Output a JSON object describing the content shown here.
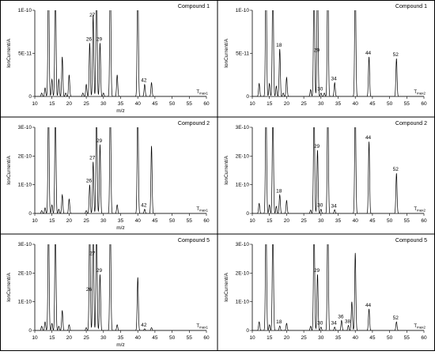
{
  "chart_data": [
    {
      "type": "line",
      "title": "Compound 1",
      "xlabel": "m/z",
      "ylabel": "IonCurrent/A",
      "xlim": [
        10,
        60
      ],
      "ylim": [
        0,
        1e-10
      ],
      "xticks": [
        "10",
        "15",
        "20",
        "25",
        "30",
        "35",
        "40",
        "45",
        "50",
        "55",
        "60"
      ],
      "yticks": [
        {
          "value": 0,
          "label": "0"
        },
        {
          "value": 5e-11,
          "label": "5E-11"
        },
        {
          "value": 1e-10,
          "label": "1E-10"
        }
      ],
      "temp_label": "Tmax1",
      "peaks": [
        {
          "x": 12,
          "y": 4e-12
        },
        {
          "x": 13,
          "y": 1e-11
        },
        {
          "x": 14,
          "y": 1.5e-10
        },
        {
          "x": 15,
          "y": 2e-11
        },
        {
          "x": 16,
          "y": 1.5e-10
        },
        {
          "x": 17,
          "y": 2e-11
        },
        {
          "x": 18,
          "y": 4.6e-11
        },
        {
          "x": 19,
          "y": 4e-12
        },
        {
          "x": 20,
          "y": 2.5e-11
        },
        {
          "x": 24,
          "y": 4e-12
        },
        {
          "x": 25,
          "y": 1.4e-11
        },
        {
          "x": 26,
          "y": 6.2e-11
        },
        {
          "x": 27,
          "y": 9.5e-11
        },
        {
          "x": 28,
          "y": 1.5e-10
        },
        {
          "x": 29,
          "y": 6.2e-11
        },
        {
          "x": 30,
          "y": 4e-12
        },
        {
          "x": 32,
          "y": 1.5e-10
        },
        {
          "x": 34,
          "y": 2.5e-11
        },
        {
          "x": 40,
          "y": 1.5e-10
        },
        {
          "x": 42,
          "y": 1.4e-11
        },
        {
          "x": 44,
          "y": 1.6e-11
        }
      ],
      "labels": [
        {
          "x": 26,
          "y": 6.2e-11,
          "text": "26"
        },
        {
          "x": 27,
          "y": 9.5e-11,
          "text": "27"
        },
        {
          "x": 29,
          "y": 6.2e-11,
          "text": "29"
        },
        {
          "x": 42,
          "y": 1.4e-11,
          "text": "42"
        }
      ]
    },
    {
      "type": "line",
      "title": "Compound 1",
      "xlabel": "",
      "ylabel": "IonCurrent/A",
      "xlim": [
        10,
        60
      ],
      "ylim": [
        0,
        1e-10
      ],
      "xticks": [
        "10",
        "15",
        "20",
        "25",
        "30",
        "35",
        "40",
        "45",
        "50",
        "55",
        "60"
      ],
      "yticks": [
        {
          "value": 0,
          "label": "0"
        },
        {
          "value": 5e-11,
          "label": "5E-11"
        },
        {
          "value": 1e-10,
          "label": "1E-10"
        }
      ],
      "temp_label": "Tmax2",
      "peaks": [
        {
          "x": 12,
          "y": 1.5e-11
        },
        {
          "x": 14,
          "y": 1.5e-10
        },
        {
          "x": 15,
          "y": 1.5e-11
        },
        {
          "x": 16,
          "y": 1.5e-10
        },
        {
          "x": 17,
          "y": 1.2e-11
        },
        {
          "x": 18,
          "y": 5.5e-11
        },
        {
          "x": 19,
          "y": 4e-12
        },
        {
          "x": 20,
          "y": 2.2e-11
        },
        {
          "x": 27,
          "y": 8e-12
        },
        {
          "x": 28,
          "y": 1.5e-10
        },
        {
          "x": 29,
          "y": 1.5e-10
        },
        {
          "x": 30,
          "y": 4e-12
        },
        {
          "x": 31,
          "y": 4e-12
        },
        {
          "x": 32,
          "y": 1.5e-10
        },
        {
          "x": 34,
          "y": 1.6e-11
        },
        {
          "x": 40,
          "y": 1.5e-10
        },
        {
          "x": 44,
          "y": 4.6e-11
        },
        {
          "x": 52,
          "y": 4.4e-11
        }
      ],
      "labels": [
        {
          "x": 18,
          "y": 5.5e-11,
          "text": "18"
        },
        {
          "x": 29,
          "y": 4.9e-11,
          "text": "29"
        },
        {
          "x": 30,
          "y": 4e-12,
          "text": "30"
        },
        {
          "x": 34,
          "y": 1.6e-11,
          "text": "34"
        },
        {
          "x": 44,
          "y": 4.6e-11,
          "text": "44"
        },
        {
          "x": 52,
          "y": 4.4e-11,
          "text": "52"
        }
      ]
    },
    {
      "type": "line",
      "title": "Compound 2",
      "xlabel": "m/z",
      "ylabel": "IonCurrent/A",
      "xlim": [
        10,
        60
      ],
      "ylim": [
        0,
        3e-10
      ],
      "xticks": [
        "10",
        "15",
        "20",
        "25",
        "30",
        "35",
        "40",
        "45",
        "50",
        "55",
        "60"
      ],
      "yticks": [
        {
          "value": 0,
          "label": "0"
        },
        {
          "value": 1e-10,
          "label": "1E-10"
        },
        {
          "value": 2e-10,
          "label": "2E-10"
        },
        {
          "value": 3e-10,
          "label": "3E-10"
        }
      ],
      "temp_label": "Tmax1",
      "peaks": [
        {
          "x": 12,
          "y": 1e-11
        },
        {
          "x": 13,
          "y": 2e-11
        },
        {
          "x": 14,
          "y": 4e-10
        },
        {
          "x": 15,
          "y": 3e-11
        },
        {
          "x": 16,
          "y": 4e-10
        },
        {
          "x": 17,
          "y": 1.5e-11
        },
        {
          "x": 18,
          "y": 6.5e-11
        },
        {
          "x": 20,
          "y": 5e-11
        },
        {
          "x": 25,
          "y": 1e-11
        },
        {
          "x": 26,
          "y": 1e-10
        },
        {
          "x": 27,
          "y": 1.8e-10
        },
        {
          "x": 28,
          "y": 4e-10
        },
        {
          "x": 29,
          "y": 2.4e-10
        },
        {
          "x": 32,
          "y": 4e-10
        },
        {
          "x": 34,
          "y": 3e-11
        },
        {
          "x": 40,
          "y": 4e-10
        },
        {
          "x": 42,
          "y": 1.5e-11
        },
        {
          "x": 44,
          "y": 2.35e-10
        }
      ],
      "labels": [
        {
          "x": 26,
          "y": 1e-10,
          "text": "26"
        },
        {
          "x": 27,
          "y": 1.8e-10,
          "text": "27"
        },
        {
          "x": 29,
          "y": 2.4e-10,
          "text": "29"
        },
        {
          "x": 42,
          "y": 1.5e-11,
          "text": "42"
        }
      ]
    },
    {
      "type": "line",
      "title": "Compound 2",
      "xlabel": "",
      "ylabel": "IonCurrent/A",
      "xlim": [
        10,
        60
      ],
      "ylim": [
        0,
        3e-10
      ],
      "xticks": [
        "10",
        "15",
        "20",
        "25",
        "30",
        "35",
        "40",
        "45",
        "50",
        "55",
        "60"
      ],
      "yticks": [
        {
          "value": 0,
          "label": "0"
        },
        {
          "value": 1e-10,
          "label": "1E-10"
        },
        {
          "value": 2e-10,
          "label": "2E-10"
        },
        {
          "value": 3e-10,
          "label": "3E-10"
        }
      ],
      "temp_label": "Tmax2",
      "peaks": [
        {
          "x": 12,
          "y": 3.5e-11
        },
        {
          "x": 14,
          "y": 4e-10
        },
        {
          "x": 15,
          "y": 3e-11
        },
        {
          "x": 16,
          "y": 4e-10
        },
        {
          "x": 17,
          "y": 2.5e-11
        },
        {
          "x": 18,
          "y": 6.5e-11
        },
        {
          "x": 20,
          "y": 4.5e-11
        },
        {
          "x": 27,
          "y": 1.2e-11
        },
        {
          "x": 28,
          "y": 4e-10
        },
        {
          "x": 29,
          "y": 2.2e-10
        },
        {
          "x": 30,
          "y": 1.5e-11
        },
        {
          "x": 32,
          "y": 4e-10
        },
        {
          "x": 34,
          "y": 1.3e-11
        },
        {
          "x": 40,
          "y": 4e-10
        },
        {
          "x": 44,
          "y": 2.5e-10
        },
        {
          "x": 52,
          "y": 1.4e-10
        }
      ],
      "labels": [
        {
          "x": 18,
          "y": 6.5e-11,
          "text": "18"
        },
        {
          "x": 29,
          "y": 2.2e-10,
          "text": "29"
        },
        {
          "x": 30,
          "y": 1.5e-11,
          "text": "30"
        },
        {
          "x": 34,
          "y": 1.3e-11,
          "text": "34"
        },
        {
          "x": 44,
          "y": 2.5e-10,
          "text": "44"
        },
        {
          "x": 52,
          "y": 1.4e-10,
          "text": "52"
        }
      ]
    },
    {
      "type": "line",
      "title": "Compound 5",
      "xlabel": "m/z",
      "ylabel": "IonCurrent/A",
      "xlim": [
        10,
        60
      ],
      "ylim": [
        0,
        3e-10
      ],
      "xticks": [
        "10",
        "15",
        "20",
        "25",
        "30",
        "35",
        "40",
        "45",
        "50",
        "55",
        "60"
      ],
      "yticks": [
        {
          "value": 0,
          "label": "0"
        },
        {
          "value": 1e-10,
          "label": "1E-10"
        },
        {
          "value": 2e-10,
          "label": "2E-10"
        },
        {
          "value": 3e-10,
          "label": "3E-10"
        }
      ],
      "temp_label": "Tmax1",
      "peaks": [
        {
          "x": 12,
          "y": 1.5e-11
        },
        {
          "x": 13,
          "y": 3e-11
        },
        {
          "x": 14,
          "y": 4e-10
        },
        {
          "x": 15,
          "y": 2.5e-11
        },
        {
          "x": 16,
          "y": 4e-10
        },
        {
          "x": 17,
          "y": 1.5e-11
        },
        {
          "x": 18,
          "y": 7e-11
        },
        {
          "x": 20,
          "y": 2e-11
        },
        {
          "x": 25,
          "y": 1e-11
        },
        {
          "x": 26,
          "y": 4e-10
        },
        {
          "x": 27,
          "y": 4e-10
        },
        {
          "x": 28,
          "y": 4e-10
        },
        {
          "x": 29,
          "y": 1.95e-10
        },
        {
          "x": 32,
          "y": 4e-10
        },
        {
          "x": 34,
          "y": 2e-11
        },
        {
          "x": 40,
          "y": 1.85e-10
        },
        {
          "x": 42,
          "y": 6e-12
        },
        {
          "x": 44,
          "y": 1e-11
        }
      ],
      "labels": [
        {
          "x": 26,
          "y": 1.3e-10,
          "text": "26"
        },
        {
          "x": 27,
          "y": 2.55e-10,
          "text": "27"
        },
        {
          "x": 29,
          "y": 1.95e-10,
          "text": "29"
        },
        {
          "x": 42,
          "y": 6e-12,
          "text": "42"
        }
      ]
    },
    {
      "type": "line",
      "title": "Compound 5",
      "xlabel": "",
      "ylabel": "IonCurrent/A",
      "xlim": [
        10,
        60
      ],
      "ylim": [
        0,
        3e-10
      ],
      "xticks": [
        "10",
        "15",
        "20",
        "25",
        "30",
        "35",
        "40",
        "45",
        "50",
        "55",
        "60"
      ],
      "yticks": [
        {
          "value": 0,
          "label": "0"
        },
        {
          "value": 1e-10,
          "label": "1E-10"
        },
        {
          "value": 2e-10,
          "label": "2E-10"
        },
        {
          "value": 3e-10,
          "label": "3E-10"
        }
      ],
      "temp_label": "Tmax2",
      "peaks": [
        {
          "x": 12,
          "y": 3e-11
        },
        {
          "x": 14,
          "y": 4e-10
        },
        {
          "x": 15,
          "y": 2e-11
        },
        {
          "x": 16,
          "y": 4e-10
        },
        {
          "x": 18,
          "y": 1.6e-11
        },
        {
          "x": 20,
          "y": 2.5e-11
        },
        {
          "x": 27,
          "y": 1.5e-11
        },
        {
          "x": 28,
          "y": 4e-10
        },
        {
          "x": 29,
          "y": 1.95e-10
        },
        {
          "x": 30,
          "y": 1.2e-11
        },
        {
          "x": 32,
          "y": 4e-10
        },
        {
          "x": 34,
          "y": 1.2e-11
        },
        {
          "x": 36,
          "y": 3.5e-11
        },
        {
          "x": 38,
          "y": 1.8e-11
        },
        {
          "x": 39,
          "y": 1e-10
        },
        {
          "x": 40,
          "y": 2.7e-10
        },
        {
          "x": 44,
          "y": 7.5e-11
        },
        {
          "x": 52,
          "y": 3e-11
        }
      ],
      "labels": [
        {
          "x": 18,
          "y": 1.6e-11,
          "text": "18"
        },
        {
          "x": 29,
          "y": 1.95e-10,
          "text": "29"
        },
        {
          "x": 30,
          "y": 1.2e-11,
          "text": "30"
        },
        {
          "x": 34,
          "y": 1.2e-11,
          "text": "34"
        },
        {
          "x": 36,
          "y": 3.5e-11,
          "text": "36"
        },
        {
          "x": 38,
          "y": 1.8e-11,
          "text": "38"
        },
        {
          "x": 44,
          "y": 7.5e-11,
          "text": "44"
        },
        {
          "x": 52,
          "y": 3e-11,
          "text": "52"
        }
      ]
    }
  ]
}
